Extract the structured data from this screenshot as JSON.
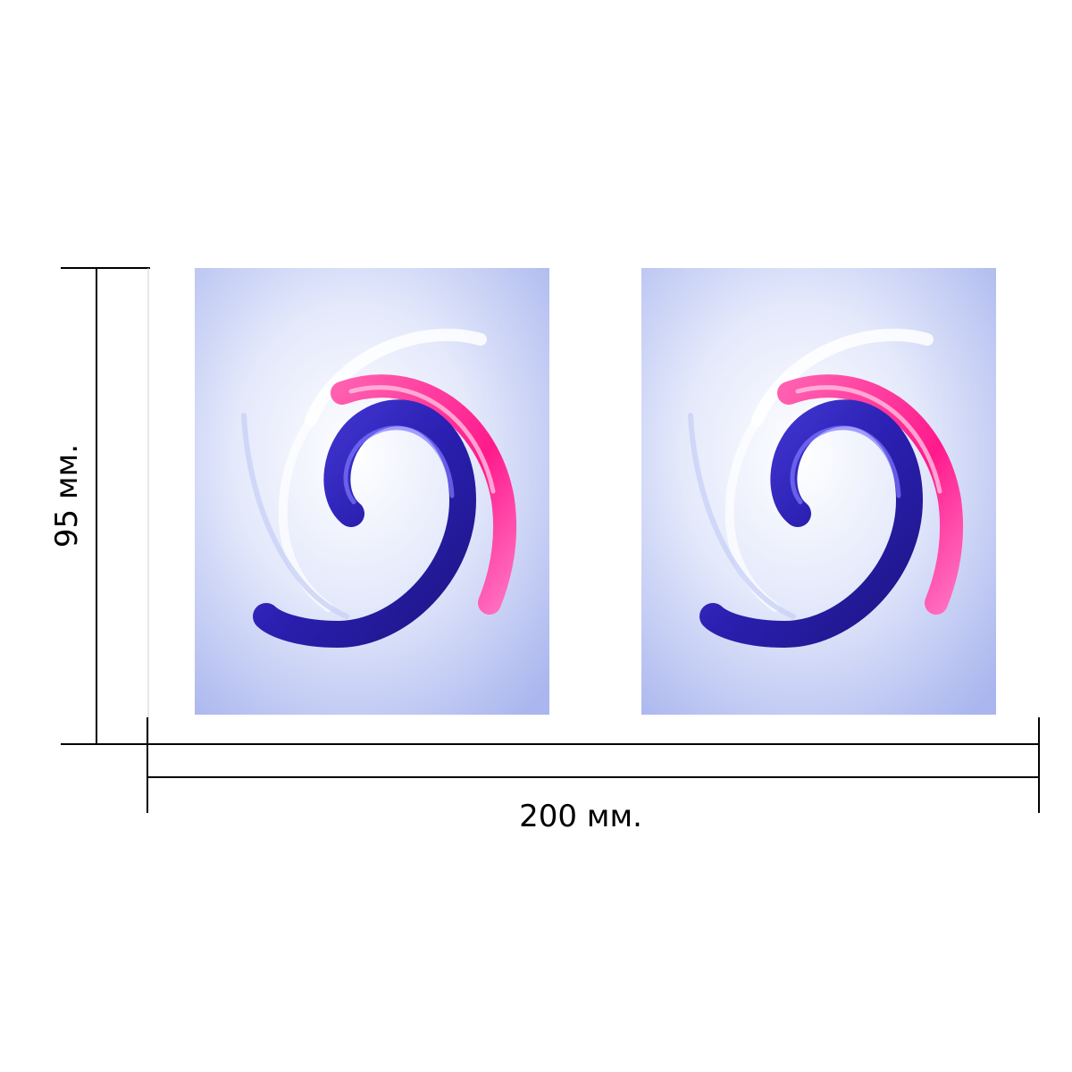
{
  "dimensions": {
    "height_label": "95 мм.",
    "width_label": "200 мм."
  },
  "colors": {
    "background": "#ffffff",
    "panel_base": "#e4e9fb",
    "panel_edge": "#aab6ee",
    "swirl_blue": "#2a1fb0",
    "swirl_pink": "#ff1a8c",
    "swirl_clear": "#ffffff",
    "line": "#000000"
  },
  "panels": [
    {
      "name": "swirl-print-left",
      "icon": "swirl-icon"
    },
    {
      "name": "swirl-print-right",
      "icon": "swirl-icon"
    }
  ]
}
